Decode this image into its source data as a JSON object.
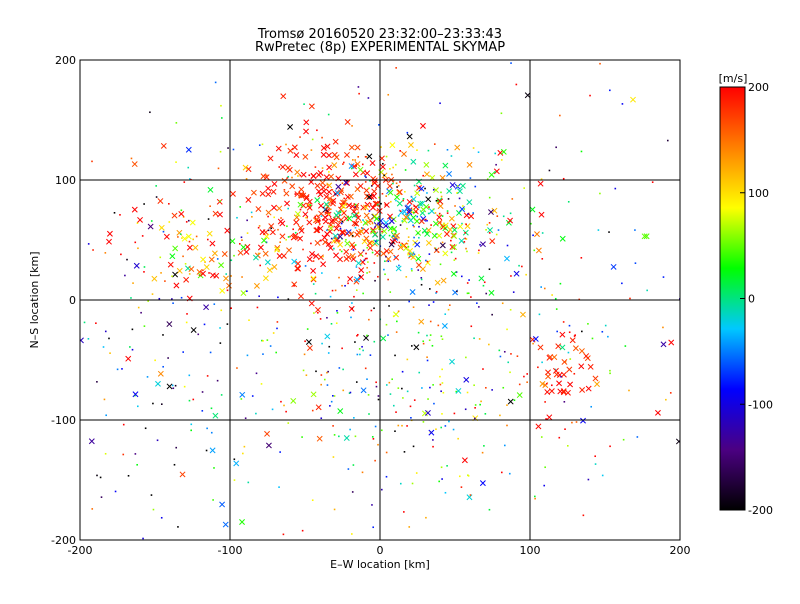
{
  "chart_data": {
    "type": "scatter",
    "title": "Tromsø 20160520 23:32:00–23:33:43",
    "subtitle": "RwPretec (8p) EXPERIMENTAL SKYMAP",
    "xlabel": "E–W location [km]",
    "ylabel": "N–S location [km]",
    "xlim": [
      -200,
      200
    ],
    "ylim": [
      -200,
      200
    ],
    "xticks": [
      "-200",
      "-100",
      "0",
      "100",
      "200"
    ],
    "yticks": [
      "-200",
      "-100",
      "0",
      "100",
      "200"
    ],
    "xtick_values": [
      -200,
      -100,
      0,
      100,
      200
    ],
    "ytick_values": [
      -200,
      -100,
      0,
      100,
      200
    ],
    "grid": true,
    "marker_types": [
      "dot",
      "cross"
    ],
    "colorbar": {
      "label": "[m/s]",
      "range": [
        -200,
        200
      ],
      "ticks": [
        "200",
        "100",
        "0",
        "-100",
        "-200"
      ],
      "tick_values": [
        200,
        100,
        0,
        -100,
        -200
      ],
      "colormap": [
        "#000000",
        "#4b0082",
        "#0000ff",
        "#00c8ff",
        "#00ff00",
        "#ffff00",
        "#ff8000",
        "#ff0000"
      ]
    },
    "clusters": [
      {
        "region": "northwest-main",
        "x_center": -35,
        "y_center": 75,
        "spread_x": 25,
        "spread_y": 30,
        "count": 260,
        "v_mean": 190,
        "v_spread": 20,
        "cross_fraction": 0.85
      },
      {
        "region": "center-north",
        "x_center": 15,
        "y_center": 65,
        "spread_x": 35,
        "spread_y": 25,
        "count": 420,
        "v_mean": 60,
        "v_spread": 120,
        "cross_fraction": 0.45
      },
      {
        "region": "west",
        "x_center": -120,
        "y_center": 45,
        "spread_x": 35,
        "spread_y": 25,
        "count": 90,
        "v_mean": 150,
        "v_spread": 90,
        "cross_fraction": 0.6
      },
      {
        "region": "center-south",
        "x_center": 20,
        "y_center": -60,
        "spread_x": 55,
        "spread_y": 60,
        "count": 220,
        "v_mean": 40,
        "v_spread": 130,
        "cross_fraction": 0.1
      },
      {
        "region": "southeast",
        "x_center": 120,
        "y_center": -60,
        "spread_x": 15,
        "spread_y": 15,
        "count": 45,
        "v_mean": 185,
        "v_spread": 20,
        "cross_fraction": 0.9
      },
      {
        "region": "southwest",
        "x_center": -150,
        "y_center": -80,
        "spread_x": 40,
        "spread_y": 60,
        "count": 60,
        "v_mean": -150,
        "v_spread": 80,
        "cross_fraction": 0.2
      },
      {
        "region": "scattered",
        "x_center": 0,
        "y_center": 0,
        "spread_x": 130,
        "spread_y": 120,
        "count": 520,
        "v_mean": 30,
        "v_spread": 150,
        "cross_fraction": 0.15
      }
    ]
  }
}
